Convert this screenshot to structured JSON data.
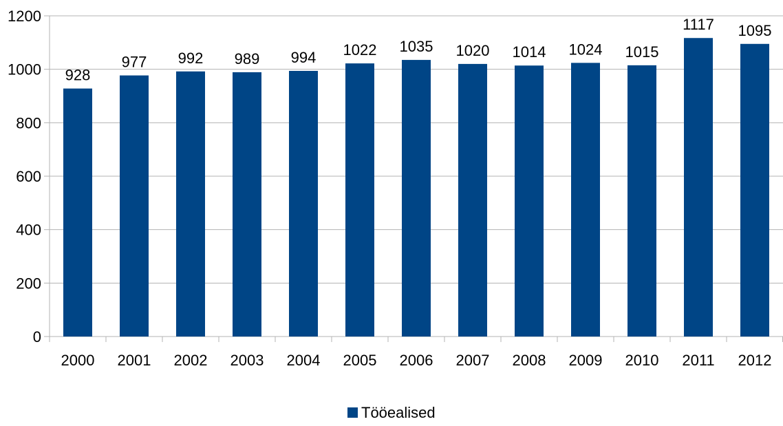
{
  "chart_data": {
    "type": "bar",
    "title": "",
    "xlabel": "",
    "ylabel": "",
    "categories": [
      "2000",
      "2001",
      "2002",
      "2003",
      "2004",
      "2005",
      "2006",
      "2007",
      "2008",
      "2009",
      "2010",
      "2011",
      "2012"
    ],
    "series": [
      {
        "name": "Tööealised",
        "values": [
          928,
          977,
          992,
          989,
          994,
          1022,
          1035,
          1020,
          1014,
          1024,
          1015,
          1117,
          1095
        ],
        "color": "#004586"
      }
    ],
    "ylim": [
      0,
      1200
    ],
    "yticks": [
      0,
      200,
      400,
      600,
      800,
      1000,
      1200
    ],
    "grid": true,
    "data_labels": true,
    "legend_position": "bottom"
  }
}
